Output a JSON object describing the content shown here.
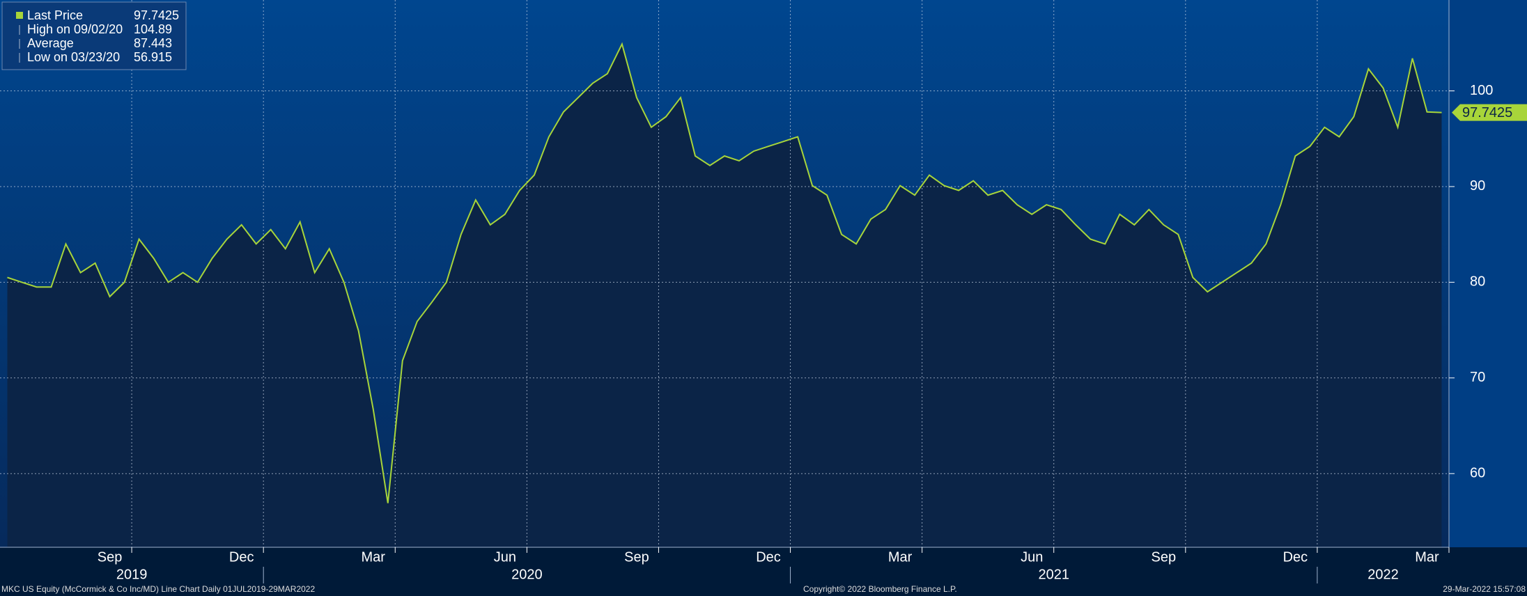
{
  "chart_data": {
    "type": "line",
    "stats": [
      {
        "label": "Last Price",
        "value": 97.7425
      },
      {
        "label": "High on 09/02/20",
        "value": 104.89
      },
      {
        "label": "Average",
        "value": 87.443
      },
      {
        "label": "Low on 03/23/20",
        "value": 56.915
      }
    ],
    "x": [
      "2019-07",
      "2019-07",
      "2019-07",
      "2019-08",
      "2019-08",
      "2019-08",
      "2019-09",
      "2019-09",
      "2019-09",
      "2019-10",
      "2019-10",
      "2019-10",
      "2019-11",
      "2019-11",
      "2019-11",
      "2019-12",
      "2019-12",
      "2019-12",
      "2020-01",
      "2020-01",
      "2020-01",
      "2020-02",
      "2020-02",
      "2020-02",
      "2020-03",
      "2020-03",
      "2020-03",
      "2020-04",
      "2020-04",
      "2020-04",
      "2020-05",
      "2020-05",
      "2020-05",
      "2020-06",
      "2020-06",
      "2020-06",
      "2020-07",
      "2020-07",
      "2020-07",
      "2020-08",
      "2020-08",
      "2020-08",
      "2020-09",
      "2020-09",
      "2020-09",
      "2020-10",
      "2020-10",
      "2020-10",
      "2020-11",
      "2020-11",
      "2020-11",
      "2020-12",
      "2020-12",
      "2020-12",
      "2021-01",
      "2021-01",
      "2021-01",
      "2021-02",
      "2021-02",
      "2021-02",
      "2021-03",
      "2021-03",
      "2021-03",
      "2021-04",
      "2021-04",
      "2021-04",
      "2021-05",
      "2021-05",
      "2021-05",
      "2021-06",
      "2021-06",
      "2021-06",
      "2021-07",
      "2021-07",
      "2021-07",
      "2021-08",
      "2021-08",
      "2021-08",
      "2021-09",
      "2021-09",
      "2021-09",
      "2021-10",
      "2021-10",
      "2021-10",
      "2021-11",
      "2021-11",
      "2021-11",
      "2021-12",
      "2021-12",
      "2021-12",
      "2022-01",
      "2022-01",
      "2022-01",
      "2022-02",
      "2022-02",
      "2022-02",
      "2022-03",
      "2022-03",
      "2022-03"
    ],
    "series": [
      {
        "color": "#a8d53a",
        "values": [
          80.5,
          80,
          79.5,
          79.5,
          84,
          81,
          82,
          78.5,
          80,
          84.5,
          82.5,
          80,
          81,
          80,
          82.5,
          84.5,
          86,
          84,
          85.5,
          83.5,
          86.3,
          81,
          83.5,
          80,
          74.9,
          66.7,
          56.915,
          71.8,
          75.9,
          77.9,
          80,
          85,
          88.6,
          86,
          87.1,
          89.6,
          91.2,
          95.2,
          97.8,
          99.3,
          100.8,
          101.8,
          104.89,
          99.3,
          96.2,
          97.3,
          99.3,
          93.2,
          92.2,
          93.2,
          92.7,
          93.7,
          94.2,
          94.7,
          95.2,
          90.1,
          89.1,
          85,
          84,
          86.6,
          87.6,
          90.1,
          89.1,
          91.2,
          90.1,
          89.6,
          90.6,
          89.1,
          89.6,
          88.1,
          87.1,
          88.1,
          87.6,
          86,
          84.5,
          84,
          87.1,
          86,
          87.6,
          86,
          85,
          80.5,
          79,
          80,
          81,
          82,
          84,
          88.1,
          93.2,
          94.2,
          96.2,
          95.2,
          97.3,
          102.3,
          100.3,
          96.2,
          103.4,
          97.8,
          97.7425
        ]
      }
    ],
    "xlim": [
      "2019-07",
      "2022-04"
    ],
    "xticks": [
      {
        "value": "2019-09",
        "label": "Sep"
      },
      {
        "value": "2019-12",
        "label": "Dec"
      },
      {
        "value": "2020-03",
        "label": "Mar"
      },
      {
        "value": "2020-06",
        "label": "Jun"
      },
      {
        "value": "2020-09",
        "label": "Sep"
      },
      {
        "value": "2020-12",
        "label": "Dec"
      },
      {
        "value": "2021-03",
        "label": "Mar"
      },
      {
        "value": "2021-06",
        "label": "Jun"
      },
      {
        "value": "2021-09",
        "label": "Sep"
      },
      {
        "value": "2021-12",
        "label": "Dec"
      },
      {
        "value": "2022-03",
        "label": "Mar"
      }
    ],
    "year_ticks": [
      "2019",
      "2020",
      "2021",
      "2022"
    ],
    "ylim": [
      52.3,
      109.5
    ],
    "yticks": [
      60,
      70,
      80,
      90,
      100
    ],
    "grid": true,
    "footer_left": "MKC US Equity (McCormick & Co Inc/MD) Line Chart  Daily 01JUL2019-29MAR2022",
    "footer_center": "Copyright© 2022 Bloomberg Finance L.P.",
    "footer_right": "29-Mar-2022 15:57:08"
  }
}
